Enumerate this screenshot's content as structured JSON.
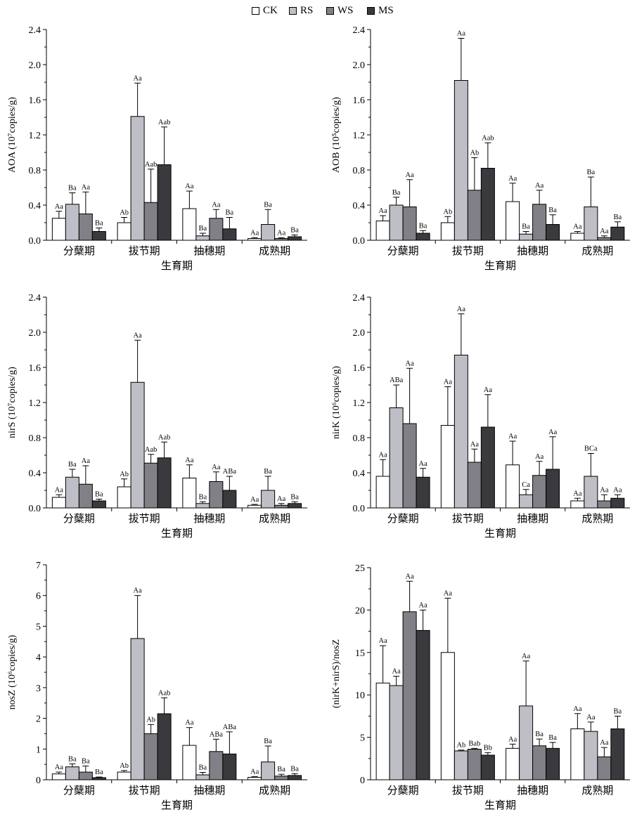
{
  "legend": {
    "series": [
      {
        "name": "CK",
        "color": "#ffffff"
      },
      {
        "name": "RS",
        "color": "#bebec6"
      },
      {
        "name": "WS",
        "color": "#808086"
      },
      {
        "name": "MS",
        "color": "#3a3a3e"
      }
    ]
  },
  "chart_data": [
    {
      "type": "bar",
      "title": "",
      "ylabel": "AOA (10⁷copies/g)",
      "xlabel": "生育期",
      "categories": [
        "分蘖期",
        "拔节期",
        "抽穗期",
        "成熟期"
      ],
      "ylim": [
        0,
        2.4
      ],
      "yticks": [
        "0.0",
        "0.4",
        "0.8",
        "1.2",
        "1.6",
        "2.0",
        "2.4"
      ],
      "series": [
        {
          "name": "CK",
          "values": [
            0.25,
            0.2,
            0.36,
            0.02
          ],
          "errors": [
            0.08,
            0.06,
            0.2,
            0.01
          ],
          "labels": [
            "Aa",
            "Ab",
            "Aa",
            "Aa"
          ]
        },
        {
          "name": "RS",
          "values": [
            0.41,
            1.41,
            0.05,
            0.18
          ],
          "errors": [
            0.13,
            0.38,
            0.03,
            0.17
          ],
          "labels": [
            "Ba",
            "Aa",
            "Ba",
            "Ba"
          ]
        },
        {
          "name": "WS",
          "values": [
            0.3,
            0.43,
            0.25,
            0.02
          ],
          "errors": [
            0.25,
            0.38,
            0.1,
            0.01
          ],
          "labels": [
            "Aa",
            "Aab",
            "Aa",
            "Aa"
          ]
        },
        {
          "name": "MS",
          "values": [
            0.1,
            0.86,
            0.13,
            0.04
          ],
          "errors": [
            0.04,
            0.43,
            0.13,
            0.02
          ],
          "labels": [
            "Ba",
            "Aab",
            "Ba",
            "Ba"
          ]
        }
      ]
    },
    {
      "type": "bar",
      "title": "",
      "ylabel": "AOB (10⁵copies/g)",
      "xlabel": "生育期",
      "categories": [
        "分蘖期",
        "拔节期",
        "抽穗期",
        "成熟期"
      ],
      "ylim": [
        0,
        2.4
      ],
      "yticks": [
        "0.0",
        "0.4",
        "0.8",
        "1.2",
        "1.6",
        "2.0",
        "2.4"
      ],
      "series": [
        {
          "name": "CK",
          "values": [
            0.22,
            0.2,
            0.44,
            0.08
          ],
          "errors": [
            0.06,
            0.07,
            0.21,
            0.02
          ],
          "labels": [
            "Aa",
            "Ab",
            "Aa",
            "Aa"
          ]
        },
        {
          "name": "RS",
          "values": [
            0.4,
            1.82,
            0.07,
            0.38
          ],
          "errors": [
            0.09,
            0.48,
            0.03,
            0.34
          ],
          "labels": [
            "Ba",
            "Aa",
            "Ba",
            "Ba"
          ]
        },
        {
          "name": "WS",
          "values": [
            0.38,
            0.57,
            0.41,
            0.03
          ],
          "errors": [
            0.31,
            0.37,
            0.16,
            0.02
          ],
          "labels": [
            "Aa",
            "Ab",
            "Aa",
            "Aa"
          ]
        },
        {
          "name": "MS",
          "values": [
            0.08,
            0.82,
            0.18,
            0.15
          ],
          "errors": [
            0.03,
            0.29,
            0.11,
            0.06
          ],
          "labels": [
            "Ba",
            "Aab",
            "Ba",
            "Ba"
          ]
        }
      ]
    },
    {
      "type": "bar",
      "title": "",
      "ylabel": "nirS (10⁷copies/g)",
      "xlabel": "生育期",
      "categories": [
        "分蘖期",
        "拔节期",
        "抽穗期",
        "成熟期"
      ],
      "ylim": [
        0,
        2.4
      ],
      "yticks": [
        "0.0",
        "0.4",
        "0.8",
        "1.2",
        "1.6",
        "2.0",
        "2.4"
      ],
      "series": [
        {
          "name": "CK",
          "values": [
            0.12,
            0.24,
            0.34,
            0.03
          ],
          "errors": [
            0.03,
            0.09,
            0.15,
            0.01
          ],
          "labels": [
            "Aa",
            "Ab",
            "Aa",
            "Aa"
          ]
        },
        {
          "name": "RS",
          "values": [
            0.35,
            1.43,
            0.05,
            0.2
          ],
          "errors": [
            0.09,
            0.48,
            0.02,
            0.16
          ],
          "labels": [
            "Ba",
            "Aa",
            "Ba",
            "Ba"
          ]
        },
        {
          "name": "WS",
          "values": [
            0.27,
            0.51,
            0.3,
            0.03
          ],
          "errors": [
            0.21,
            0.1,
            0.11,
            0.02
          ],
          "labels": [
            "Aa",
            "Aab",
            "Aa",
            "Aa"
          ]
        },
        {
          "name": "MS",
          "values": [
            0.08,
            0.57,
            0.2,
            0.05
          ],
          "errors": [
            0.02,
            0.18,
            0.16,
            0.02
          ],
          "labels": [
            "Ba",
            "Aab",
            "ABa",
            "Ba"
          ]
        }
      ]
    },
    {
      "type": "bar",
      "title": "",
      "ylabel": "nirK (10⁶copies/g)",
      "xlabel": "生育期",
      "categories": [
        "分蘖期",
        "拔节期",
        "抽穗期",
        "成熟期"
      ],
      "ylim": [
        0,
        2.4
      ],
      "yticks": [
        "0.0",
        "0.4",
        "0.8",
        "1.2",
        "1.6",
        "2.0",
        "2.4"
      ],
      "series": [
        {
          "name": "CK",
          "values": [
            0.36,
            0.94,
            0.49,
            0.08
          ],
          "errors": [
            0.19,
            0.44,
            0.27,
            0.03
          ],
          "labels": [
            "Aa",
            "Aa",
            "Aa",
            "Aa"
          ]
        },
        {
          "name": "RS",
          "values": [
            1.14,
            1.74,
            0.15,
            0.36
          ],
          "errors": [
            0.26,
            0.47,
            0.06,
            0.26
          ],
          "labels": [
            "ABa",
            "Aa",
            "Ca",
            "BCa"
          ]
        },
        {
          "name": "WS",
          "values": [
            0.96,
            0.52,
            0.37,
            0.08
          ],
          "errors": [
            0.63,
            0.15,
            0.16,
            0.07
          ],
          "labels": [
            "Aa",
            "Aa",
            "Aa",
            "Aa"
          ]
        },
        {
          "name": "MS",
          "values": [
            0.35,
            0.92,
            0.44,
            0.11
          ],
          "errors": [
            0.1,
            0.37,
            0.37,
            0.04
          ],
          "labels": [
            "Aa",
            "Aa",
            "Aa",
            "Aa"
          ]
        }
      ]
    },
    {
      "type": "bar",
      "title": "",
      "ylabel": "nosZ (10⁶copies/g)",
      "xlabel": "生育期",
      "categories": [
        "分蘖期",
        "拔节期",
        "抽穗期",
        "成熟期"
      ],
      "ylim": [
        0,
        7
      ],
      "yticks": [
        "0",
        "1",
        "2",
        "3",
        "4",
        "5",
        "6",
        "7"
      ],
      "series": [
        {
          "name": "CK",
          "values": [
            0.19,
            0.25,
            1.12,
            0.08
          ],
          "errors": [
            0.06,
            0.05,
            0.58,
            0.02
          ],
          "labels": [
            "Aa",
            "Ab",
            "Aa",
            "Aa"
          ]
        },
        {
          "name": "RS",
          "values": [
            0.42,
            4.6,
            0.16,
            0.58
          ],
          "errors": [
            0.1,
            1.4,
            0.08,
            0.52
          ],
          "labels": [
            "Ba",
            "Aa",
            "Ba",
            "Ba"
          ]
        },
        {
          "name": "WS",
          "values": [
            0.25,
            1.5,
            0.92,
            0.12
          ],
          "errors": [
            0.2,
            0.3,
            0.4,
            0.06
          ],
          "labels": [
            "Ba",
            "Ab",
            "ABa",
            "Ba"
          ]
        },
        {
          "name": "MS",
          "values": [
            0.07,
            2.15,
            0.84,
            0.14
          ],
          "errors": [
            0.02,
            0.52,
            0.72,
            0.06
          ],
          "labels": [
            "Ba",
            "Aab",
            "ABa",
            "Ba"
          ]
        }
      ]
    },
    {
      "type": "bar",
      "title": "",
      "ylabel": "(nirK+nirS)/nosZ",
      "xlabel": "生育期",
      "categories": [
        "分蘖期",
        "拔节期",
        "抽穗期",
        "成熟期"
      ],
      "ylim": [
        0,
        25
      ],
      "yticks": [
        "0",
        "5",
        "10",
        "15",
        "20",
        "25"
      ],
      "series": [
        {
          "name": "CK",
          "values": [
            11.4,
            15.0,
            3.7,
            6.0
          ],
          "errors": [
            4.4,
            6.4,
            0.5,
            1.8
          ],
          "labels": [
            "Aa",
            "Aa",
            "Aa",
            "Aa"
          ]
        },
        {
          "name": "RS",
          "values": [
            11.1,
            3.4,
            8.7,
            5.7
          ],
          "errors": [
            1.1,
            0.1,
            5.3,
            1.1
          ],
          "labels": [
            "Aa",
            "Ab",
            "Aa",
            "Aa"
          ]
        },
        {
          "name": "WS",
          "values": [
            19.8,
            3.6,
            4.0,
            2.7
          ],
          "errors": [
            3.6,
            0.1,
            0.8,
            1.1
          ],
          "labels": [
            "Aa",
            "Bab",
            "Ba",
            "Aa"
          ]
        },
        {
          "name": "MS",
          "values": [
            17.6,
            2.9,
            3.7,
            6.0
          ],
          "errors": [
            2.4,
            0.3,
            0.7,
            1.5
          ],
          "labels": [
            "Aa",
            "Bb",
            "Ba",
            "Ba"
          ]
        }
      ]
    }
  ]
}
